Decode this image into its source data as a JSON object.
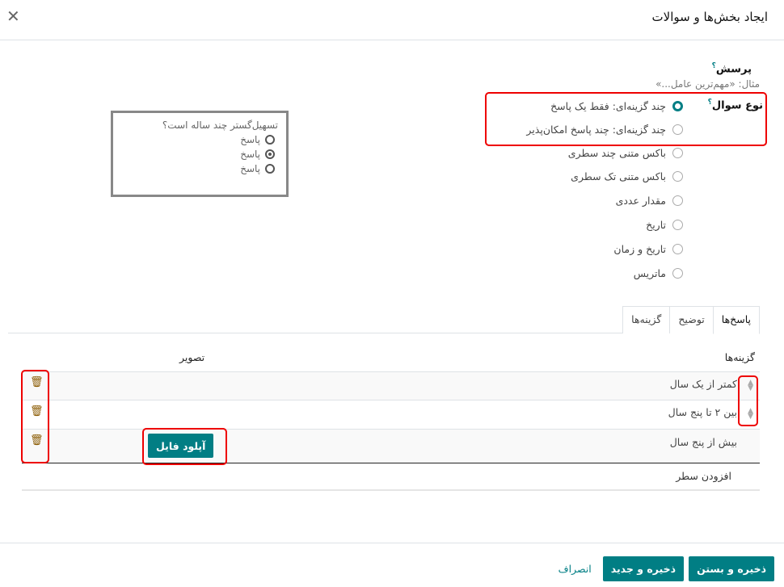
{
  "dialog": {
    "title": "ایجاد بخش‌ها و سوالات",
    "close_icon": "close-icon"
  },
  "question": {
    "label": "پرسش",
    "help": "؟",
    "placeholder": "مثال: «مهم‌ترین عامل...»"
  },
  "question_type": {
    "label": "نوع سوال",
    "help": "؟",
    "selected": 0,
    "options": [
      "چند گزینه‌ای: فقط یک پاسخ",
      "چند گزینه‌ای: چند پاسخ امکان‌پذیر",
      "باکس متنی چند سطری",
      "باکس متنی تک سطری",
      "مقدار عددی",
      "تاریخ",
      "تاریخ و زمان",
      "ماتریس"
    ]
  },
  "preview": {
    "question": "تسهیل‌گستر چند ساله است؟",
    "answers": [
      "پاسخ",
      "پاسخ",
      "پاسخ"
    ],
    "selected": 1
  },
  "tabs": [
    "پاسخ‌ها",
    "توضیح",
    "گزینه‌ها"
  ],
  "table": {
    "headers": {
      "choices": "گزینه‌ها",
      "image": "تصویر"
    },
    "rows": [
      "کمتر از یک سال",
      "بین ۲ تا پنج سال",
      "بیش از پنج سال"
    ],
    "upload_label": "آپلود فایل",
    "add_line": "افزودن سطر"
  },
  "footer": {
    "save_close": "ذخیره و بستن",
    "save_new": "ذخیره و جدید",
    "discard": "انصراف"
  },
  "colors": {
    "primary": "#017e84",
    "highlight": "#ee0000"
  }
}
